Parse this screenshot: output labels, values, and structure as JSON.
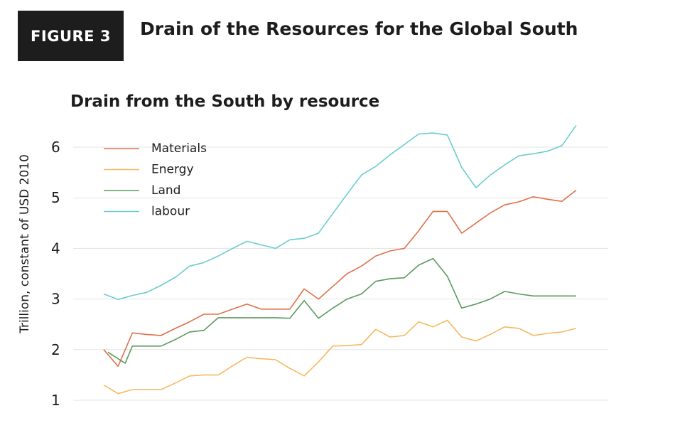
{
  "figure": {
    "label": "FIGURE 3",
    "title": "Drain of the Resources for the Global South"
  },
  "chart_data": {
    "type": "line",
    "title": "Drain from the South by resource",
    "xlabel": "",
    "ylabel": "Trillion, constant of USD 2010",
    "ylim": [
      1,
      6.5
    ],
    "yticks": [
      1,
      2,
      3,
      4,
      5,
      6
    ],
    "grid": true,
    "legend_position": "top-left",
    "series": [
      {
        "name": "Materials",
        "color": "#e0704a",
        "points": [
          [
            0,
            2.0
          ],
          [
            1,
            1.67
          ],
          [
            2,
            2.33
          ],
          [
            3,
            2.3
          ],
          [
            4,
            2.28
          ],
          [
            5,
            2.42
          ],
          [
            6,
            2.55
          ],
          [
            7,
            2.7
          ],
          [
            8,
            2.7
          ],
          [
            9,
            2.8
          ],
          [
            10,
            2.9
          ],
          [
            11,
            2.8
          ],
          [
            12,
            2.8
          ],
          [
            13,
            2.8
          ],
          [
            14,
            3.2
          ],
          [
            15,
            3.0
          ],
          [
            16,
            3.25
          ],
          [
            17,
            3.5
          ],
          [
            18,
            3.65
          ],
          [
            19,
            3.85
          ],
          [
            20,
            3.95
          ],
          [
            21,
            4.0
          ],
          [
            22,
            4.35
          ],
          [
            23,
            4.73
          ],
          [
            24,
            4.73
          ],
          [
            25,
            4.3
          ],
          [
            26,
            4.5
          ],
          [
            27,
            4.7
          ],
          [
            28,
            4.86
          ],
          [
            29,
            4.92
          ],
          [
            30,
            5.02
          ],
          [
            31,
            4.97
          ],
          [
            32,
            4.93
          ],
          [
            33,
            5.15
          ]
        ]
      },
      {
        "name": "Energy",
        "color": "#f6b860",
        "points": [
          [
            0,
            1.3
          ],
          [
            1,
            1.13
          ],
          [
            2,
            1.21
          ],
          [
            3,
            1.21
          ],
          [
            4,
            1.21
          ],
          [
            5,
            1.34
          ],
          [
            6,
            1.48
          ],
          [
            7,
            1.5
          ],
          [
            8,
            1.5
          ],
          [
            9,
            1.68
          ],
          [
            10,
            1.85
          ],
          [
            11,
            1.82
          ],
          [
            12,
            1.8
          ],
          [
            13,
            1.63
          ],
          [
            14,
            1.48
          ],
          [
            15,
            1.76
          ],
          [
            16,
            2.07
          ],
          [
            17,
            2.08
          ],
          [
            18,
            2.1
          ],
          [
            19,
            2.4
          ],
          [
            20,
            2.25
          ],
          [
            21,
            2.28
          ],
          [
            22,
            2.55
          ],
          [
            23,
            2.45
          ],
          [
            24,
            2.58
          ],
          [
            25,
            2.25
          ],
          [
            26,
            2.17
          ],
          [
            27,
            2.3
          ],
          [
            28,
            2.45
          ],
          [
            29,
            2.42
          ],
          [
            30,
            2.28
          ],
          [
            31,
            2.32
          ],
          [
            32,
            2.35
          ],
          [
            33,
            2.42
          ]
        ]
      },
      {
        "name": "Land",
        "color": "#5a9a5e",
        "points": [
          [
            0.3,
            1.95
          ],
          [
            1,
            1.82
          ],
          [
            1.5,
            1.73
          ],
          [
            2,
            2.07
          ],
          [
            3,
            2.07
          ],
          [
            4,
            2.07
          ],
          [
            5,
            2.2
          ],
          [
            6,
            2.35
          ],
          [
            7,
            2.38
          ],
          [
            8,
            2.63
          ],
          [
            9,
            2.63
          ],
          [
            10,
            2.63
          ],
          [
            11,
            2.63
          ],
          [
            12,
            2.63
          ],
          [
            13,
            2.62
          ],
          [
            14,
            2.97
          ],
          [
            15,
            2.62
          ],
          [
            16,
            2.82
          ],
          [
            17,
            3.0
          ],
          [
            18,
            3.1
          ],
          [
            19,
            3.35
          ],
          [
            20,
            3.4
          ],
          [
            21,
            3.42
          ],
          [
            22,
            3.67
          ],
          [
            23,
            3.8
          ],
          [
            24,
            3.45
          ],
          [
            25,
            2.82
          ],
          [
            26,
            2.9
          ],
          [
            27,
            3.0
          ],
          [
            28,
            3.15
          ],
          [
            29,
            3.1
          ],
          [
            30,
            3.06
          ],
          [
            31,
            3.06
          ],
          [
            32,
            3.06
          ],
          [
            33,
            3.06
          ]
        ]
      },
      {
        "name": "labour",
        "color": "#6ccbd0",
        "points": [
          [
            0,
            3.1
          ],
          [
            1,
            2.99
          ],
          [
            2,
            3.07
          ],
          [
            3,
            3.13
          ],
          [
            4,
            3.27
          ],
          [
            5,
            3.43
          ],
          [
            6,
            3.65
          ],
          [
            7,
            3.72
          ],
          [
            8,
            3.85
          ],
          [
            9,
            4.0
          ],
          [
            10,
            4.14
          ],
          [
            11,
            4.07
          ],
          [
            12,
            4.0
          ],
          [
            13,
            4.17
          ],
          [
            14,
            4.2
          ],
          [
            15,
            4.3
          ],
          [
            16,
            4.69
          ],
          [
            17,
            5.07
          ],
          [
            18,
            5.45
          ],
          [
            19,
            5.62
          ],
          [
            20,
            5.85
          ],
          [
            21,
            6.05
          ],
          [
            22,
            6.26
          ],
          [
            23,
            6.28
          ],
          [
            24,
            6.24
          ],
          [
            25,
            5.6
          ],
          [
            26,
            5.2
          ],
          [
            27,
            5.45
          ],
          [
            28,
            5.65
          ],
          [
            29,
            5.83
          ],
          [
            30,
            5.87
          ],
          [
            31,
            5.92
          ],
          [
            32,
            6.03
          ],
          [
            33,
            6.43
          ]
        ]
      }
    ]
  }
}
